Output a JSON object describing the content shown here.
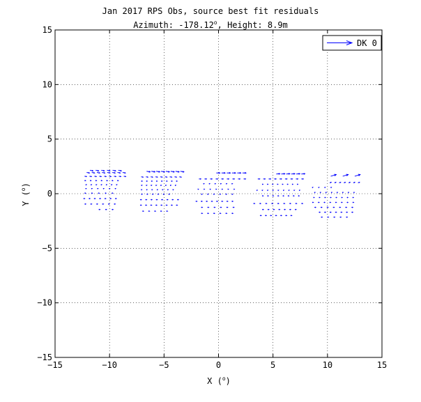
{
  "chart_data": {
    "type": "quiver",
    "title": "Jan 2017 RPS Obs, source best fit residuals",
    "subtitle": {
      "prefix": "Azimuth: -178.12",
      "superscript": "o",
      "suffix": ", Height: 8.9m"
    },
    "xlabel": {
      "text": "X (",
      "superscript": "o",
      "close": ")"
    },
    "ylabel": {
      "text": "Y (",
      "superscript": "o",
      "close": ")"
    },
    "xlim": [
      -15,
      15
    ],
    "ylim": [
      -15,
      15
    ],
    "xticks": [
      -15,
      -10,
      -5,
      0,
      5,
      10,
      15
    ],
    "yticks": [
      -15,
      -10,
      -5,
      0,
      5,
      10,
      15
    ],
    "xtick_labels": [
      "−15",
      "−10",
      "−5",
      "0",
      "5",
      "10",
      "15"
    ],
    "ytick_labels": [
      "−15",
      "−10",
      "−5",
      "0",
      "5",
      "10",
      "15"
    ],
    "grid": true,
    "grid_style": "dotted",
    "legend": {
      "entries": [
        "DK 0"
      ],
      "placement": "top-right"
    },
    "series": [
      {
        "name": "DK 0",
        "color": "#0000ff",
        "groups": [
          {
            "rows": [
              {
                "y": 2.15,
                "x0": -11.8,
                "x1": -9.2,
                "n": 6,
                "dx": 0.28,
                "dy": -0.06
              },
              {
                "y": 1.95,
                "x0": -12.1,
                "x1": -8.8,
                "n": 8,
                "dx": 0.25,
                "dy": -0.05
              },
              {
                "y": 1.6,
                "x0": -12.3,
                "x1": -8.7,
                "n": 9,
                "dx": 0.18,
                "dy": -0.03
              },
              {
                "y": 1.2,
                "x0": -12.3,
                "x1": -9.3,
                "n": 7,
                "dx": 0.1,
                "dy": 0.0
              },
              {
                "y": 0.8,
                "x0": -12.2,
                "x1": -9.4,
                "n": 7,
                "dx": 0.08,
                "dy": 0.03
              },
              {
                "y": 0.45,
                "x0": -12.2,
                "x1": -9.5,
                "n": 6,
                "dx": 0.06,
                "dy": 0.03
              },
              {
                "y": 0.05,
                "x0": -12.3,
                "x1": -9.8,
                "n": 5,
                "dx": 0.1,
                "dy": 0.0
              },
              {
                "y": -0.45,
                "x0": -12.4,
                "x1": -9.5,
                "n": 7,
                "dx": 0.12,
                "dy": 0.0
              },
              {
                "y": -0.95,
                "x0": -12.3,
                "x1": -9.6,
                "n": 6,
                "dx": 0.12,
                "dy": 0.0
              },
              {
                "y": -1.45,
                "x0": -11.0,
                "x1": -9.8,
                "n": 3,
                "dx": 0.12,
                "dy": 0.0
              }
            ]
          },
          {
            "rows": [
              {
                "y": 2.05,
                "x0": -6.6,
                "x1": -3.5,
                "n": 8,
                "dx": 0.32,
                "dy": -0.05
              },
              {
                "y": 1.55,
                "x0": -7.1,
                "x1": -3.6,
                "n": 9,
                "dx": 0.18,
                "dy": -0.03
              },
              {
                "y": 1.15,
                "x0": -7.1,
                "x1": -3.9,
                "n": 8,
                "dx": 0.1,
                "dy": 0.0
              },
              {
                "y": 0.75,
                "x0": -7.1,
                "x1": -4.0,
                "n": 8,
                "dx": 0.08,
                "dy": 0.02
              },
              {
                "y": 0.35,
                "x0": -7.1,
                "x1": -4.2,
                "n": 7,
                "dx": 0.06,
                "dy": 0.02
              },
              {
                "y": -0.05,
                "x0": -7.1,
                "x1": -4.6,
                "n": 6,
                "dx": 0.1,
                "dy": 0.0
              },
              {
                "y": -0.55,
                "x0": -7.2,
                "x1": -3.8,
                "n": 8,
                "dx": 0.12,
                "dy": 0.0
              },
              {
                "y": -1.05,
                "x0": -7.2,
                "x1": -3.9,
                "n": 8,
                "dx": 0.12,
                "dy": 0.0
              },
              {
                "y": -1.6,
                "x0": -7.0,
                "x1": -4.8,
                "n": 5,
                "dx": 0.12,
                "dy": 0.0
              }
            ]
          },
          {
            "rows": [
              {
                "y": 1.9,
                "x0": -0.2,
                "x1": 2.2,
                "n": 6,
                "dx": 0.32,
                "dy": 0.0
              },
              {
                "y": 1.35,
                "x0": -1.8,
                "x1": 2.3,
                "n": 9,
                "dx": 0.18,
                "dy": 0.0
              },
              {
                "y": 0.9,
                "x0": -1.4,
                "x1": 1.2,
                "n": 6,
                "dx": 0.08,
                "dy": 0.02
              },
              {
                "y": 0.4,
                "x0": -1.9,
                "x1": 1.4,
                "n": 7,
                "dx": 0.06,
                "dy": 0.02
              },
              {
                "y": -0.05,
                "x0": -1.6,
                "x1": 1.2,
                "n": 6,
                "dx": 0.1,
                "dy": 0.0
              },
              {
                "y": -0.7,
                "x0": -2.1,
                "x1": 1.2,
                "n": 8,
                "dx": 0.12,
                "dy": 0.0
              },
              {
                "y": -1.25,
                "x0": -1.6,
                "x1": 1.3,
                "n": 6,
                "dx": 0.12,
                "dy": 0.0
              },
              {
                "y": -1.8,
                "x0": -1.6,
                "x1": 1.2,
                "n": 6,
                "dx": 0.12,
                "dy": 0.0
              }
            ]
          },
          {
            "rows": [
              {
                "y": 1.8,
                "x0": 5.3,
                "x1": 7.6,
                "n": 6,
                "dx": 0.32,
                "dy": 0.03
              },
              {
                "y": 1.35,
                "x0": 3.6,
                "x1": 7.6,
                "n": 9,
                "dx": 0.18,
                "dy": 0.0
              },
              {
                "y": 0.85,
                "x0": 4.0,
                "x1": 7.2,
                "n": 8,
                "dx": 0.08,
                "dy": 0.02
              },
              {
                "y": 0.3,
                "x0": 3.5,
                "x1": 7.4,
                "n": 9,
                "dx": 0.06,
                "dy": 0.02
              },
              {
                "y": -0.2,
                "x0": 4.0,
                "x1": 7.3,
                "n": 8,
                "dx": 0.1,
                "dy": 0.0
              },
              {
                "y": -0.9,
                "x0": 3.2,
                "x1": 7.6,
                "n": 9,
                "dx": 0.12,
                "dy": 0.0
              },
              {
                "y": -1.45,
                "x0": 4.0,
                "x1": 7.0,
                "n": 7,
                "dx": 0.12,
                "dy": 0.0
              },
              {
                "y": -2.0,
                "x0": 3.8,
                "x1": 6.6,
                "n": 7,
                "dx": 0.12,
                "dy": 0.0
              }
            ]
          },
          {
            "rows": [
              {
                "y": 1.6,
                "x0": 10.3,
                "x1": 12.5,
                "n": 3,
                "dx": 0.5,
                "dy": 0.15
              },
              {
                "y": 1.0,
                "x0": 10.2,
                "x1": 12.8,
                "n": 7,
                "dx": 0.14,
                "dy": 0.04
              },
              {
                "y": 0.55,
                "x0": 8.6,
                "x1": 10.3,
                "n": 4,
                "dx": 0.06,
                "dy": 0.03
              },
              {
                "y": 0.1,
                "x0": 8.8,
                "x1": 12.4,
                "n": 8,
                "dx": 0.06,
                "dy": 0.02
              },
              {
                "y": -0.35,
                "x0": 8.7,
                "x1": 12.3,
                "n": 8,
                "dx": 0.08,
                "dy": 0.0
              },
              {
                "y": -0.8,
                "x0": 8.6,
                "x1": 12.3,
                "n": 8,
                "dx": 0.1,
                "dy": 0.0
              },
              {
                "y": -1.25,
                "x0": 8.8,
                "x1": 12.2,
                "n": 7,
                "dx": 0.12,
                "dy": 0.0
              },
              {
                "y": -1.7,
                "x0": 9.2,
                "x1": 12.2,
                "n": 7,
                "dx": 0.12,
                "dy": 0.0
              },
              {
                "y": -2.15,
                "x0": 9.4,
                "x1": 11.7,
                "n": 5,
                "dx": 0.12,
                "dy": 0.0
              }
            ]
          }
        ]
      }
    ]
  }
}
